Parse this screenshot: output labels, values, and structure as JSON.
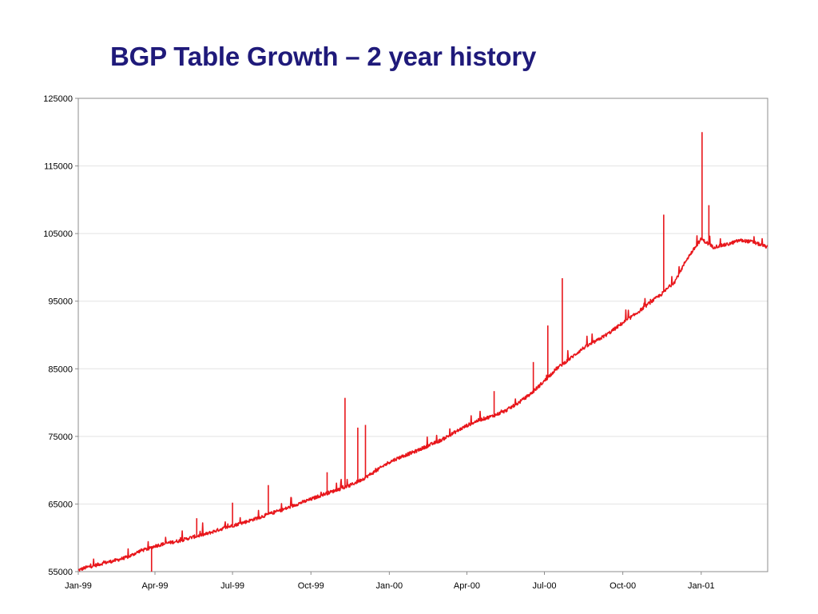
{
  "slide": {
    "title": "BGP Table Growth – 2 year history"
  },
  "chart_data": {
    "type": "line",
    "title": "BGP Table Growth – 2 year history",
    "xlabel": "",
    "ylabel": "",
    "ylim": [
      55000,
      125000
    ],
    "xlim": [
      "1999-01-01",
      "2001-03-20"
    ],
    "y_ticks": [
      "55000",
      "65000",
      "75000",
      "85000",
      "95000",
      "105000",
      "115000",
      "125000"
    ],
    "x_ticks": [
      {
        "label": "Jan-99",
        "date": "1999-01-01"
      },
      {
        "label": "Apr-99",
        "date": "1999-04-01"
      },
      {
        "label": "Jul-99",
        "date": "1999-07-01"
      },
      {
        "label": "Oct-99",
        "date": "1999-10-01"
      },
      {
        "label": "Jan-00",
        "date": "2000-01-01"
      },
      {
        "label": "Apr-00",
        "date": "2000-04-01"
      },
      {
        "label": "Jul-00",
        "date": "2000-07-01"
      },
      {
        "label": "Oct-00",
        "date": "2000-10-01"
      },
      {
        "label": "Jan-01",
        "date": "2001-01-01"
      }
    ],
    "grid": "horizontal",
    "legend": "none",
    "series": [
      {
        "color": "#e8161b",
        "points": [
          [
            "1999-01-01",
            55200
          ],
          [
            "1999-01-10",
            55600
          ],
          [
            "1999-01-20",
            55900
          ],
          [
            "1999-02-01",
            56300
          ],
          [
            "1999-02-15",
            56700
          ],
          [
            "1999-03-01",
            57200
          ],
          [
            "1999-03-15",
            58100
          ],
          [
            "1999-03-25",
            58400
          ],
          [
            "1999-04-01",
            58800
          ],
          [
            "1999-04-15",
            59200
          ],
          [
            "1999-05-01",
            59600
          ],
          [
            "1999-05-15",
            60100
          ],
          [
            "1999-06-01",
            60600
          ],
          [
            "1999-06-15",
            61200
          ],
          [
            "1999-07-01",
            61800
          ],
          [
            "1999-07-15",
            62300
          ],
          [
            "1999-08-01",
            63000
          ],
          [
            "1999-08-15",
            63600
          ],
          [
            "1999-09-01",
            64300
          ],
          [
            "1999-09-15",
            65000
          ],
          [
            "1999-10-01",
            65700
          ],
          [
            "1999-10-15",
            66400
          ],
          [
            "1999-11-01",
            67100
          ],
          [
            "1999-11-15",
            67700
          ],
          [
            "1999-12-01",
            68700
          ],
          [
            "1999-12-15",
            69800
          ],
          [
            "2000-01-01",
            71200
          ],
          [
            "2000-01-15",
            72000
          ],
          [
            "2000-02-01",
            72800
          ],
          [
            "2000-02-15",
            73600
          ],
          [
            "2000-03-01",
            74400
          ],
          [
            "2000-03-15",
            75400
          ],
          [
            "2000-04-01",
            76600
          ],
          [
            "2000-04-15",
            77400
          ],
          [
            "2000-05-01",
            78000
          ],
          [
            "2000-05-15",
            78700
          ],
          [
            "2000-06-01",
            80000
          ],
          [
            "2000-06-15",
            81300
          ],
          [
            "2000-07-01",
            83200
          ],
          [
            "2000-07-15",
            85000
          ],
          [
            "2000-08-01",
            86600
          ],
          [
            "2000-08-15",
            88000
          ],
          [
            "2000-09-01",
            89200
          ],
          [
            "2000-09-15",
            90300
          ],
          [
            "2000-10-01",
            91800
          ],
          [
            "2000-10-15",
            93000
          ],
          [
            "2000-11-01",
            94700
          ],
          [
            "2000-11-15",
            96000
          ],
          [
            "2000-12-01",
            97900
          ],
          [
            "2000-12-15",
            101200
          ],
          [
            "2001-01-01",
            104200
          ],
          [
            "2001-01-15",
            103000
          ],
          [
            "2001-02-01",
            103400
          ],
          [
            "2001-02-15",
            104000
          ],
          [
            "2001-03-01",
            103800
          ],
          [
            "2001-03-20",
            103000
          ]
        ],
        "spikes": [
          [
            "1999-03-28",
            55000
          ],
          [
            "1999-05-20",
            62900
          ],
          [
            "1999-07-01",
            65200
          ],
          [
            "1999-08-12",
            67800
          ],
          [
            "1999-10-20",
            69700
          ],
          [
            "1999-11-10",
            80700
          ],
          [
            "1999-11-25",
            76300
          ],
          [
            "1999-12-04",
            76700
          ],
          [
            "2000-05-03",
            81700
          ],
          [
            "2000-06-18",
            86000
          ],
          [
            "2000-07-05",
            91400
          ],
          [
            "2000-07-22",
            98400
          ],
          [
            "2000-11-18",
            107800
          ],
          [
            "2001-01-02",
            120000
          ],
          [
            "2001-01-10",
            109200
          ]
        ]
      }
    ]
  }
}
